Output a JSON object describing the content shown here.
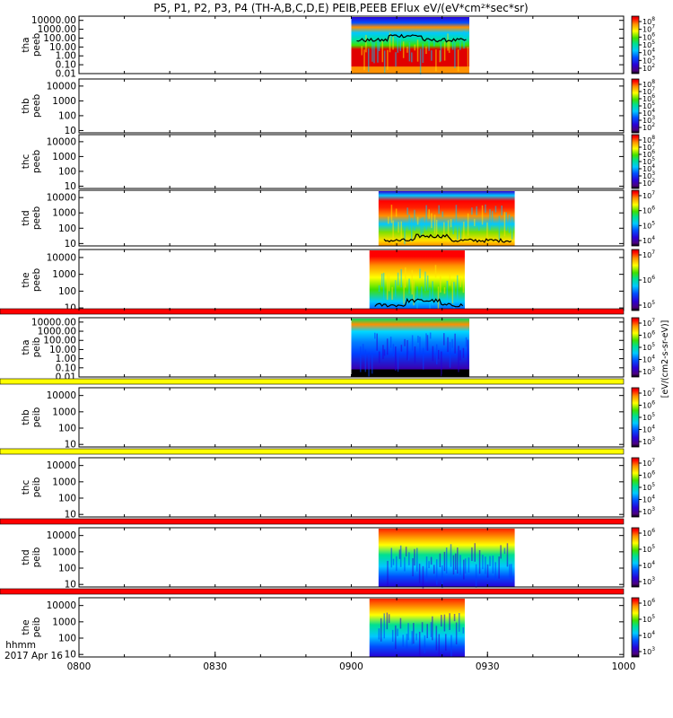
{
  "title": "P5, P1, P2, P3, P4 (TH-A,B,C,D,E) PEIB,PEEB EFlux eV/(eV*cm²*sec*sr)",
  "time_axis": {
    "ticks": [
      "0800",
      "0830",
      "0900",
      "0930",
      "1000"
    ],
    "unit_label": "hhmm",
    "date_label": "2017 Apr 16"
  },
  "colorbar_title": "[eV/(cm2-s-sr-eV)]",
  "colors": {
    "frame": "#000000",
    "background": "#ffffff",
    "flag_red": "#ff0000",
    "flag_yellow": "#ffff00",
    "trace": "#000000"
  },
  "chart_data": {
    "type": "heatmap",
    "x_range": [
      "0800",
      "1000"
    ],
    "panels": [
      {
        "name": "tha peeb",
        "label1": "tha",
        "label2": "peeb",
        "yticks": [
          "10000.00",
          "1000.00",
          "100.00",
          "10.00",
          "1.00",
          "0.10",
          "0.01"
        ],
        "ylim": [
          0.01,
          30000
        ],
        "data_span": [
          "0900",
          "0926"
        ],
        "cbar_ticks": [
          "10^8",
          "10^7",
          "10^6",
          "10^5",
          "10^4",
          "10^3",
          "10^2"
        ],
        "style": "tha-peeb",
        "top_flag": null
      },
      {
        "name": "thb peeb",
        "label1": "thb",
        "label2": "peeb",
        "yticks": [
          "10000",
          "1000",
          "100",
          "10"
        ],
        "ylim": [
          7,
          30000
        ],
        "data_span": null,
        "cbar_ticks": [
          "10^8",
          "10^7",
          "10^6",
          "10^5",
          "10^4",
          "10^3",
          "10^2"
        ],
        "style": "empty",
        "top_flag": null
      },
      {
        "name": "thc peeb",
        "label1": "thc",
        "label2": "peeb",
        "yticks": [
          "10000",
          "1000",
          "100",
          "10"
        ],
        "ylim": [
          7,
          30000
        ],
        "data_span": null,
        "cbar_ticks": [
          "10^8",
          "10^7",
          "10^6",
          "10^5",
          "10^4",
          "10^3",
          "10^2"
        ],
        "style": "empty",
        "top_flag": null
      },
      {
        "name": "thd peeb",
        "label1": "thd",
        "label2": "peeb",
        "yticks": [
          "10000",
          "1000",
          "100",
          "10"
        ],
        "ylim": [
          7,
          30000
        ],
        "data_span": [
          "0906",
          "0936"
        ],
        "cbar_ticks": [
          "10^7",
          "10^6",
          "10^5",
          "10^4"
        ],
        "style": "thd-peeb",
        "top_flag": null
      },
      {
        "name": "the peeb",
        "label1": "the",
        "label2": "peeb",
        "yticks": [
          "10000",
          "1000",
          "100",
          "10"
        ],
        "ylim": [
          7,
          30000
        ],
        "data_span": [
          "0904",
          "0925"
        ],
        "cbar_ticks": [
          "10^7",
          "10^6",
          "10^5"
        ],
        "style": "the-peeb",
        "top_flag": null
      },
      {
        "name": "tha peib",
        "label1": "tha",
        "label2": "peib",
        "yticks": [
          "10000.00",
          "1000.00",
          "100.00",
          "10.00",
          "1.00",
          "0.10",
          "0.01"
        ],
        "ylim": [
          0.01,
          30000
        ],
        "data_span": [
          "0900",
          "0926"
        ],
        "cbar_ticks": [
          "10^7",
          "10^6",
          "10^5",
          "10^4",
          "10^3"
        ],
        "style": "tha-peib",
        "top_flag": "red"
      },
      {
        "name": "thb peib",
        "label1": "thb",
        "label2": "peib",
        "yticks": [
          "10000",
          "1000",
          "100",
          "10"
        ],
        "ylim": [
          7,
          30000
        ],
        "data_span": null,
        "cbar_ticks": [
          "10^7",
          "10^6",
          "10^5",
          "10^4",
          "10^3"
        ],
        "style": "empty",
        "top_flag": "yellow"
      },
      {
        "name": "thc peib",
        "label1": "thc",
        "label2": "peib",
        "yticks": [
          "10000",
          "1000",
          "100",
          "10"
        ],
        "ylim": [
          7,
          30000
        ],
        "data_span": null,
        "cbar_ticks": [
          "10^7",
          "10^6",
          "10^5",
          "10^4",
          "10^3"
        ],
        "style": "empty",
        "top_flag": "yellow"
      },
      {
        "name": "thd peib",
        "label1": "thd",
        "label2": "peib",
        "yticks": [
          "10000",
          "1000",
          "100",
          "10"
        ],
        "ylim": [
          7,
          30000
        ],
        "data_span": [
          "0906",
          "0936"
        ],
        "cbar_ticks": [
          "10^6",
          "10^5",
          "10^4",
          "10^3"
        ],
        "style": "ion",
        "top_flag": "red"
      },
      {
        "name": "the peib",
        "label1": "the",
        "label2": "peib",
        "yticks": [
          "10000",
          "1000",
          "100",
          "10"
        ],
        "ylim": [
          7,
          30000
        ],
        "data_span": [
          "0904",
          "0925"
        ],
        "cbar_ticks": [
          "10^6",
          "10^5",
          "10^4",
          "10^3"
        ],
        "style": "ion",
        "top_flag": "red"
      }
    ]
  }
}
